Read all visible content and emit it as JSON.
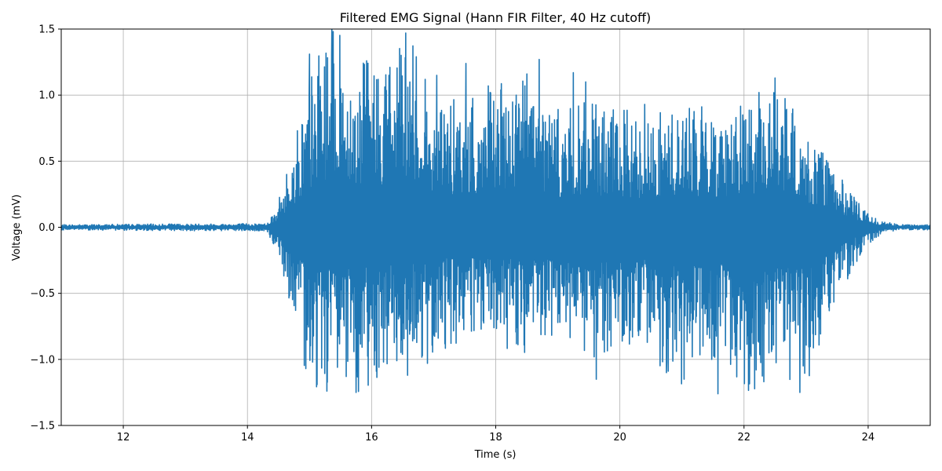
{
  "chart_data": {
    "type": "line",
    "title": "Filtered EMG Signal (Hann FIR Filter, 40 Hz cutoff)",
    "xlabel": "Time (s)",
    "ylabel": "Voltage (mV)",
    "xlim": [
      11.0,
      25.0
    ],
    "ylim": [
      -1.5,
      1.5
    ],
    "x_ticks": [
      12,
      14,
      16,
      18,
      20,
      22,
      24
    ],
    "y_ticks": [
      -1.5,
      -1.0,
      -0.5,
      0.0,
      0.5,
      1.0,
      1.5
    ],
    "x_tick_labels": [
      "12",
      "14",
      "16",
      "18",
      "20",
      "22",
      "24"
    ],
    "y_tick_labels": [
      "−1.5",
      "−1.0",
      "−0.5",
      "0.0",
      "0.5",
      "1.0",
      "1.5"
    ],
    "grid": true,
    "series": [
      {
        "color": "#1f77b4",
        "amplitude_envelope": {
          "t": [
            11.0,
            14.3,
            14.5,
            14.7,
            14.9,
            15.1,
            15.4,
            15.8,
            16.2,
            16.6,
            17.0,
            17.5,
            18.0,
            18.5,
            19.0,
            19.5,
            20.0,
            20.5,
            21.0,
            21.5,
            22.0,
            22.5,
            23.0,
            23.3,
            23.6,
            23.9,
            24.2,
            24.5,
            25.0
          ],
          "peak_pos": [
            0.02,
            0.03,
            0.2,
            0.55,
            1.0,
            1.3,
            1.5,
            1.3,
            1.28,
            1.47,
            1.0,
            0.95,
            1.05,
            1.27,
            0.9,
            0.95,
            0.9,
            0.85,
            0.95,
            0.9,
            0.95,
            1.1,
            0.75,
            0.55,
            0.35,
            0.15,
            0.05,
            0.02,
            0.02
          ],
          "peak_neg": [
            -0.02,
            -0.03,
            -0.2,
            -0.6,
            -1.05,
            -1.22,
            -1.2,
            -1.25,
            -1.1,
            -1.1,
            -0.95,
            -0.9,
            -0.9,
            -1.0,
            -0.9,
            -1.1,
            -0.85,
            -1.0,
            -1.2,
            -1.0,
            -1.25,
            -1.2,
            -1.25,
            -0.8,
            -0.45,
            -0.2,
            -0.05,
            -0.02,
            -0.02
          ]
        },
        "peaks": [
          [
            15.0,
            1.31
          ],
          [
            15.05,
            -1.02
          ],
          [
            15.28,
            -1.24
          ],
          [
            15.36,
            1.5
          ],
          [
            15.45,
            -1.06
          ],
          [
            15.75,
            -1.25
          ],
          [
            15.92,
            1.26
          ],
          [
            16.28,
            1.15
          ],
          [
            16.55,
            1.47
          ],
          [
            16.58,
            -1.12
          ],
          [
            16.72,
            1.29
          ],
          [
            16.9,
            -1.03
          ],
          [
            17.05,
            1.15
          ],
          [
            17.52,
            1.24
          ],
          [
            17.88,
            1.07
          ],
          [
            18.33,
            1.0
          ],
          [
            18.57,
            0.88
          ],
          [
            18.7,
            1.27
          ],
          [
            19.25,
            1.17
          ],
          [
            19.45,
            1.1
          ],
          [
            19.62,
            -1.15
          ],
          [
            19.95,
            0.78
          ],
          [
            20.4,
            0.93
          ],
          [
            20.75,
            -1.1
          ],
          [
            21.12,
            0.9
          ],
          [
            21.48,
            -1.0
          ],
          [
            21.58,
            -1.26
          ],
          [
            21.98,
            0.85
          ],
          [
            22.5,
            1.13
          ],
          [
            22.9,
            -1.25
          ],
          [
            23.2,
            0.55
          ],
          [
            23.38,
            0.4
          ],
          [
            23.55,
            -0.38
          ],
          [
            23.85,
            0.18
          ]
        ]
      }
    ]
  }
}
